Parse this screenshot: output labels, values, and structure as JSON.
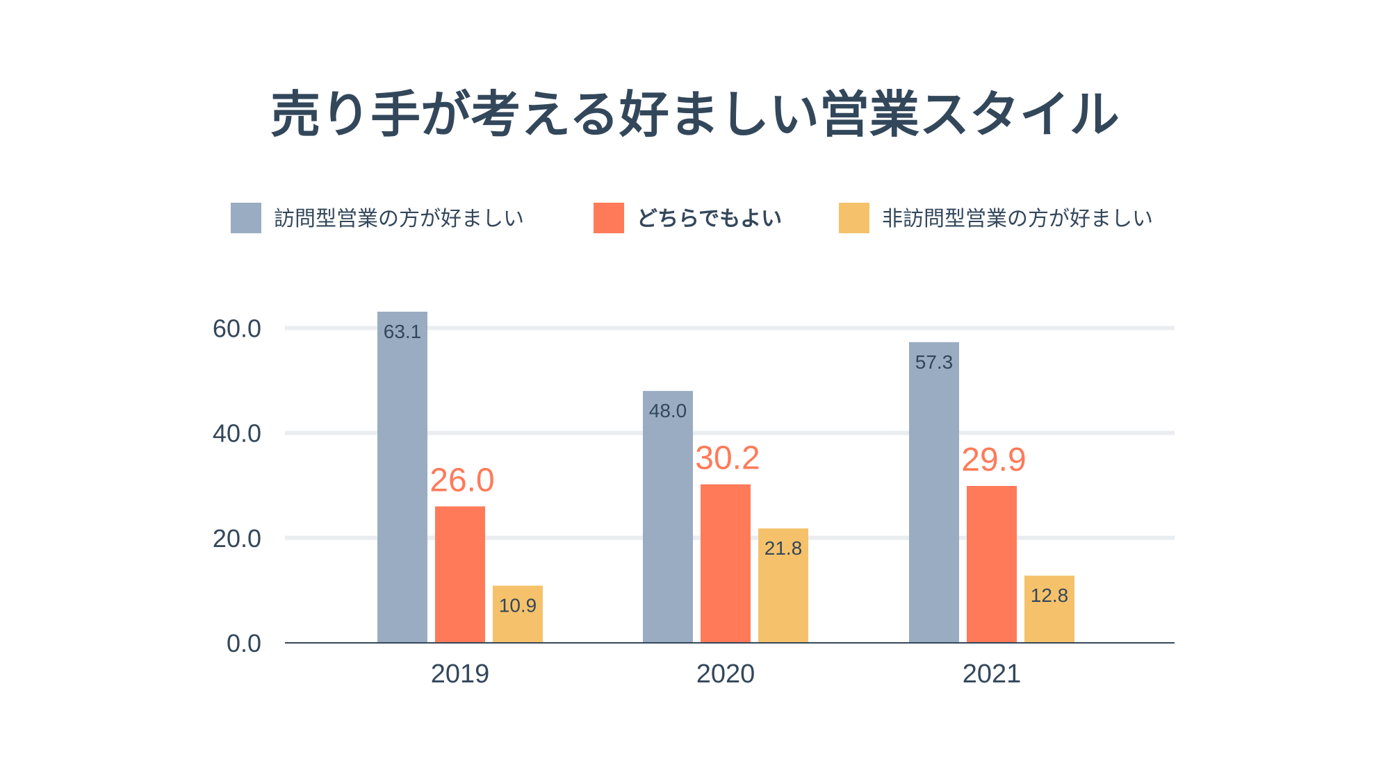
{
  "chart_data": {
    "type": "bar",
    "title": "売り手が考える好ましい営業スタイル",
    "categories": [
      "2019",
      "2020",
      "2021"
    ],
    "series": [
      {
        "name": "訪問型営業の方が好ましい",
        "values": [
          63.1,
          48.0,
          57.3
        ],
        "color": "#99acc2",
        "label_color": "#33475b",
        "label_style": "small-inside"
      },
      {
        "name": "どちらでもよい",
        "values": [
          26.0,
          30.2,
          29.9
        ],
        "color": "#ff7a59",
        "label_color": "#ff7a59",
        "label_style": "large-above",
        "highlight": true
      },
      {
        "name": "非訪問型営業の方が好ましい",
        "values": [
          10.9,
          21.8,
          12.8
        ],
        "color": "#f5c26b",
        "label_color": "#33475b",
        "label_style": "small-inside"
      }
    ],
    "value_labels": [
      [
        "63.1",
        "48.0",
        "57.3"
      ],
      [
        "26.0",
        "30.2",
        "29.9"
      ],
      [
        "10.9",
        "21.8",
        "12.8"
      ]
    ],
    "yticks": [
      0,
      20,
      40,
      60
    ],
    "ytick_labels": [
      "0.0",
      "20.0",
      "40.0",
      "60.0"
    ],
    "ylim": [
      0,
      65
    ],
    "xlabel": "",
    "ylabel": "",
    "grid": true,
    "legend_position": "top"
  }
}
